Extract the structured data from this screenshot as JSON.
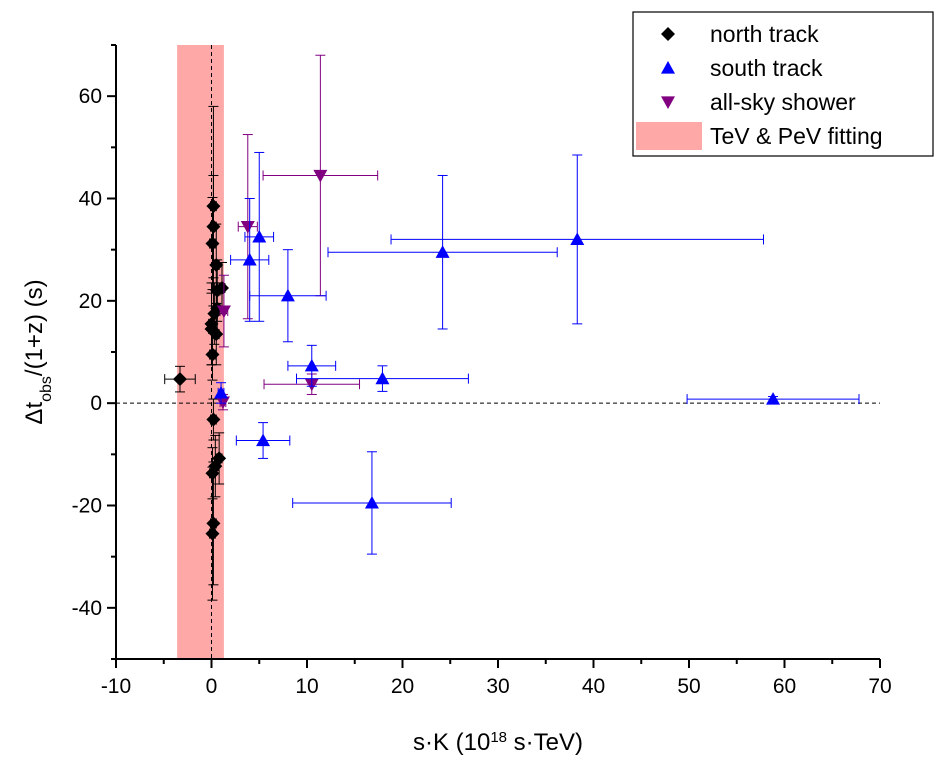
{
  "chart_data": {
    "type": "scatter",
    "xlabel_parts": [
      "s·K (10",
      "18",
      " s·TeV)"
    ],
    "ylabel_parts": [
      "Δt",
      "obs",
      "/(1+z) (s)"
    ],
    "xlim": [
      -10,
      70
    ],
    "ylim": [
      -50,
      70
    ],
    "x_ticks": [
      -10,
      0,
      10,
      20,
      30,
      40,
      50,
      60,
      70
    ],
    "y_ticks": [
      -40,
      -20,
      0,
      20,
      40,
      60
    ],
    "reference_lines": {
      "x": 0,
      "y": 0,
      "style": "dashed"
    },
    "band": {
      "name": "TeV & PeV fitting",
      "x_range": [
        -3.6,
        1.3
      ],
      "color": "#ff9999"
    },
    "legend_position": "top-right",
    "series": [
      {
        "name": "north track",
        "marker": "diamond",
        "color": "#000000",
        "points": [
          {
            "x": -3.3,
            "y": 4.7,
            "xerr": 1.6,
            "yerr": 2.5
          },
          {
            "x": 0.2,
            "y": 38.5,
            "xerr": 0.3,
            "yerr": 19.5
          },
          {
            "x": 0.2,
            "y": 34.5,
            "xerr": 0.3,
            "yerr": 10
          },
          {
            "x": 0.1,
            "y": 31.2,
            "xerr": 0.3,
            "yerr": 9
          },
          {
            "x": 0.5,
            "y": 27,
            "xerr": 0.3,
            "yerr": 8
          },
          {
            "x": 1.1,
            "y": 22.5,
            "xerr": 0.3,
            "yerr": 5
          },
          {
            "x": 0.6,
            "y": 22,
            "xerr": 0.3,
            "yerr": 6
          },
          {
            "x": 0.6,
            "y": 18.5,
            "xerr": 0.3,
            "yerr": 5
          },
          {
            "x": 0.3,
            "y": 17.5,
            "xerr": 0.3,
            "yerr": 6
          },
          {
            "x": 0.0,
            "y": 15.5,
            "xerr": 0.3,
            "yerr": 8
          },
          {
            "x": 0.0,
            "y": 14.5,
            "xerr": 0.3,
            "yerr": 7
          },
          {
            "x": 0.5,
            "y": 13.5,
            "xerr": 0.3,
            "yerr": 6
          },
          {
            "x": 0.1,
            "y": 9.5,
            "xerr": 0.3,
            "yerr": 5
          },
          {
            "x": 0.2,
            "y": -3.2,
            "xerr": 0.3,
            "yerr": 4
          },
          {
            "x": 0.8,
            "y": -10.8,
            "xerr": 0.3,
            "yerr": 5
          },
          {
            "x": 0.4,
            "y": -12.3,
            "xerr": 0.3,
            "yerr": 6
          },
          {
            "x": 0.1,
            "y": -13.7,
            "xerr": 0.3,
            "yerr": 5
          },
          {
            "x": 0.2,
            "y": -23.5,
            "xerr": 0.3,
            "yerr": 12
          },
          {
            "x": 0.1,
            "y": -25.5,
            "xerr": 0.3,
            "yerr": 13
          }
        ]
      },
      {
        "name": "south track",
        "marker": "triangle-up",
        "color": "#0000ff",
        "points": [
          {
            "x": 5.0,
            "y": 32.5,
            "xerr": 1.5,
            "yerr": 16.5
          },
          {
            "x": 4.0,
            "y": 28.0,
            "xerr": 2.0,
            "yerr": 12
          },
          {
            "x": 8.0,
            "y": 21.0,
            "xerr": 4.0,
            "yerr": 9
          },
          {
            "x": 24.2,
            "y": 29.5,
            "xerr": 12,
            "yerr": 15
          },
          {
            "x": 38.3,
            "y": 32.0,
            "xerr": 19.5,
            "yerr": 16.5
          },
          {
            "x": 1.0,
            "y": 2.0,
            "xerr": 0.3,
            "yerr": 2
          },
          {
            "x": 10.5,
            "y": 7.3,
            "xerr": 2.5,
            "yerr": 4
          },
          {
            "x": 17.9,
            "y": 4.8,
            "xerr": 9,
            "yerr": 2.5
          },
          {
            "x": 58.8,
            "y": 0.8,
            "xerr": 9,
            "yerr": 0.5
          },
          {
            "x": 5.4,
            "y": -7.3,
            "xerr": 2.8,
            "yerr": 3.5
          },
          {
            "x": 16.8,
            "y": -19.5,
            "xerr": 8.3,
            "yerr": 10
          }
        ]
      },
      {
        "name": "all-sky shower",
        "marker": "triangle-down",
        "color": "#800080",
        "points": [
          {
            "x": 11.4,
            "y": 44.5,
            "xerr": 6.0,
            "yerr": 23.5
          },
          {
            "x": 3.8,
            "y": 34.5,
            "xerr": 1.0,
            "yerr": 18
          },
          {
            "x": 10.5,
            "y": 3.7,
            "xerr": 5.0,
            "yerr": 2
          },
          {
            "x": 1.3,
            "y": 18.0,
            "xerr": 0.4,
            "yerr": 7
          },
          {
            "x": 1.2,
            "y": 0.2,
            "xerr": 0.3,
            "yerr": 1.5
          }
        ]
      }
    ]
  }
}
